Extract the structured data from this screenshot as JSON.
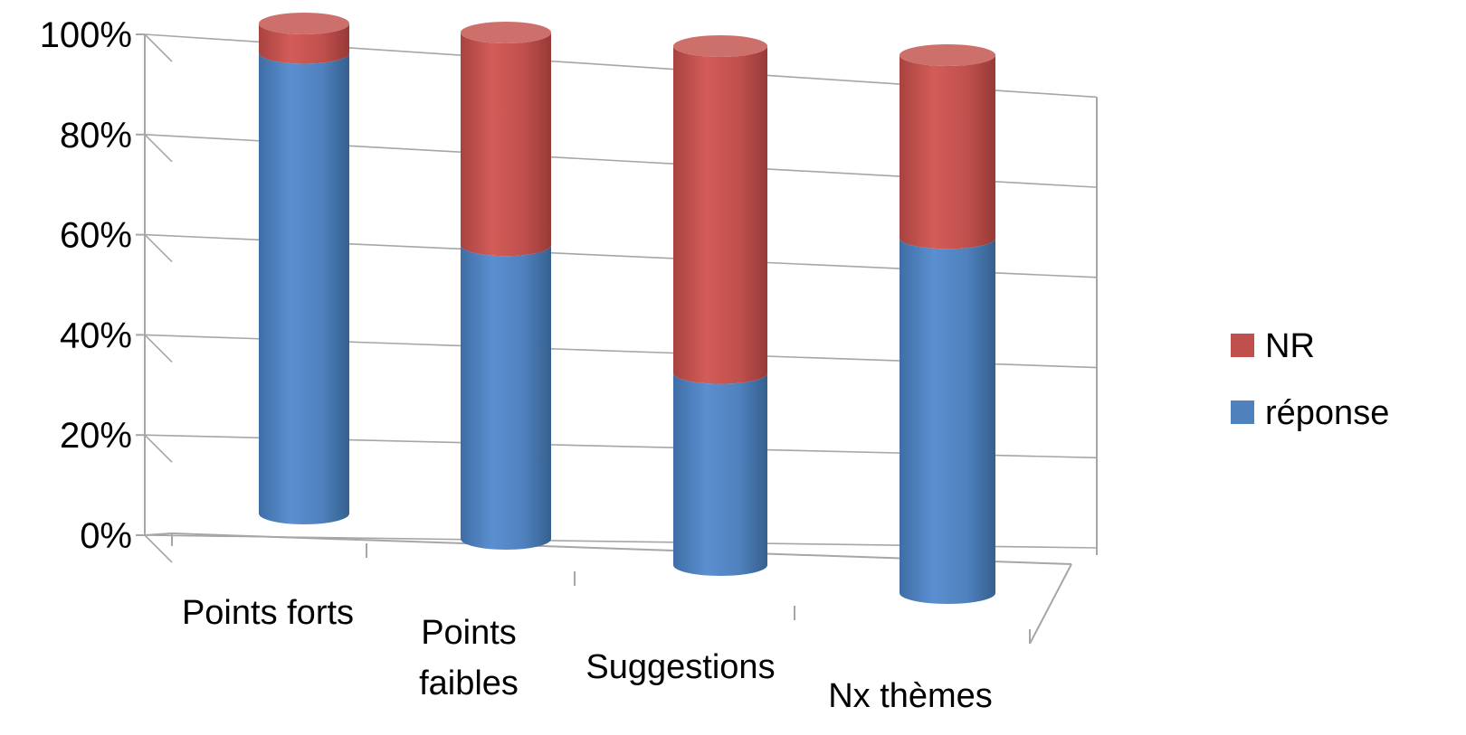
{
  "chart_data": {
    "type": "bar",
    "variant": "stacked-100-3d-cylinder",
    "title": "",
    "xlabel": "",
    "ylabel": "",
    "categories": [
      [
        "Points forts"
      ],
      [
        "Points",
        "faibles"
      ],
      [
        "Suggestions"
      ],
      [
        "Nx thèmes"
      ]
    ],
    "series": [
      {
        "name": "réponse",
        "color": "#4f81bd",
        "values": [
          94,
          58,
          37,
          66
        ]
      },
      {
        "name": "NR",
        "color": "#c0504d",
        "values": [
          6,
          42,
          63,
          34
        ]
      }
    ],
    "ylim": [
      0,
      100
    ],
    "yticks": [
      "0%",
      "20%",
      "40%",
      "60%",
      "80%",
      "100%"
    ],
    "grid": true,
    "legend_position": "right",
    "legend_order": [
      "NR",
      "réponse"
    ]
  }
}
